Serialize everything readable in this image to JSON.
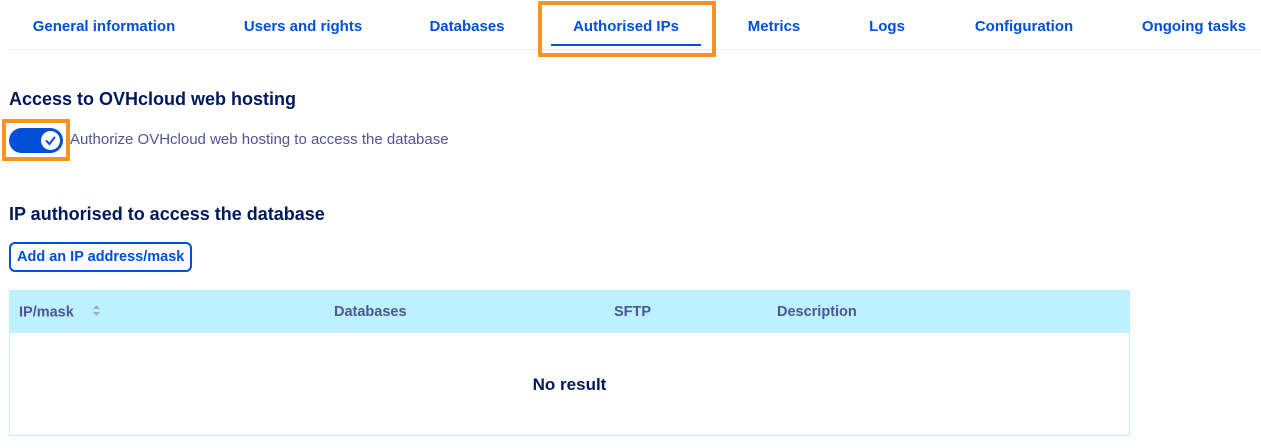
{
  "tabs": [
    "General information",
    "Users and rights",
    "Databases",
    "Authorised IPs",
    "Metrics",
    "Logs",
    "Configuration",
    "Ongoing tasks"
  ],
  "active_tab": "Authorised IPs",
  "access_section": {
    "title": "Access to OVHcloud web hosting",
    "toggle_label": "Authorize OVHcloud web hosting to access the database",
    "toggle_on": true
  },
  "ip_section": {
    "title": "IP authorised to access the database",
    "add_button": "Add an IP address/mask"
  },
  "table": {
    "columns": [
      "IP/mask",
      "Databases",
      "SFTP",
      "Description"
    ],
    "empty_text": "No result"
  },
  "colors": {
    "accent": "#0050d7",
    "highlight": "#f7931e",
    "table_header": "#bef1ff"
  }
}
